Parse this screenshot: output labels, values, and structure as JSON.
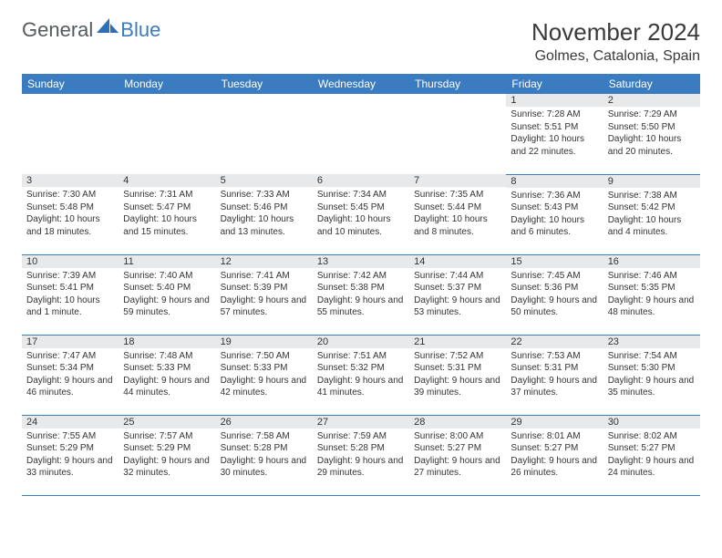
{
  "logo": {
    "text1": "General",
    "text2": "Blue",
    "shape_color": "#2f6fb3"
  },
  "title": "November 2024",
  "location": "Golmes, Catalonia, Spain",
  "colors": {
    "header_bg": "#3b7bbf",
    "header_text": "#ffffff",
    "daynum_bg": "#e8e9ea",
    "border": "#3b7bbf",
    "text": "#333333"
  },
  "columns": [
    "Sunday",
    "Monday",
    "Tuesday",
    "Wednesday",
    "Thursday",
    "Friday",
    "Saturday"
  ],
  "weeks": [
    [
      null,
      null,
      null,
      null,
      null,
      {
        "n": "1",
        "sr": "7:28 AM",
        "ss": "5:51 PM",
        "dl": "10 hours and 22 minutes."
      },
      {
        "n": "2",
        "sr": "7:29 AM",
        "ss": "5:50 PM",
        "dl": "10 hours and 20 minutes."
      }
    ],
    [
      {
        "n": "3",
        "sr": "7:30 AM",
        "ss": "5:48 PM",
        "dl": "10 hours and 18 minutes."
      },
      {
        "n": "4",
        "sr": "7:31 AM",
        "ss": "5:47 PM",
        "dl": "10 hours and 15 minutes."
      },
      {
        "n": "5",
        "sr": "7:33 AM",
        "ss": "5:46 PM",
        "dl": "10 hours and 13 minutes."
      },
      {
        "n": "6",
        "sr": "7:34 AM",
        "ss": "5:45 PM",
        "dl": "10 hours and 10 minutes."
      },
      {
        "n": "7",
        "sr": "7:35 AM",
        "ss": "5:44 PM",
        "dl": "10 hours and 8 minutes."
      },
      {
        "n": "8",
        "sr": "7:36 AM",
        "ss": "5:43 PM",
        "dl": "10 hours and 6 minutes."
      },
      {
        "n": "9",
        "sr": "7:38 AM",
        "ss": "5:42 PM",
        "dl": "10 hours and 4 minutes."
      }
    ],
    [
      {
        "n": "10",
        "sr": "7:39 AM",
        "ss": "5:41 PM",
        "dl": "10 hours and 1 minute."
      },
      {
        "n": "11",
        "sr": "7:40 AM",
        "ss": "5:40 PM",
        "dl": "9 hours and 59 minutes."
      },
      {
        "n": "12",
        "sr": "7:41 AM",
        "ss": "5:39 PM",
        "dl": "9 hours and 57 minutes."
      },
      {
        "n": "13",
        "sr": "7:42 AM",
        "ss": "5:38 PM",
        "dl": "9 hours and 55 minutes."
      },
      {
        "n": "14",
        "sr": "7:44 AM",
        "ss": "5:37 PM",
        "dl": "9 hours and 53 minutes."
      },
      {
        "n": "15",
        "sr": "7:45 AM",
        "ss": "5:36 PM",
        "dl": "9 hours and 50 minutes."
      },
      {
        "n": "16",
        "sr": "7:46 AM",
        "ss": "5:35 PM",
        "dl": "9 hours and 48 minutes."
      }
    ],
    [
      {
        "n": "17",
        "sr": "7:47 AM",
        "ss": "5:34 PM",
        "dl": "9 hours and 46 minutes."
      },
      {
        "n": "18",
        "sr": "7:48 AM",
        "ss": "5:33 PM",
        "dl": "9 hours and 44 minutes."
      },
      {
        "n": "19",
        "sr": "7:50 AM",
        "ss": "5:33 PM",
        "dl": "9 hours and 42 minutes."
      },
      {
        "n": "20",
        "sr": "7:51 AM",
        "ss": "5:32 PM",
        "dl": "9 hours and 41 minutes."
      },
      {
        "n": "21",
        "sr": "7:52 AM",
        "ss": "5:31 PM",
        "dl": "9 hours and 39 minutes."
      },
      {
        "n": "22",
        "sr": "7:53 AM",
        "ss": "5:31 PM",
        "dl": "9 hours and 37 minutes."
      },
      {
        "n": "23",
        "sr": "7:54 AM",
        "ss": "5:30 PM",
        "dl": "9 hours and 35 minutes."
      }
    ],
    [
      {
        "n": "24",
        "sr": "7:55 AM",
        "ss": "5:29 PM",
        "dl": "9 hours and 33 minutes."
      },
      {
        "n": "25",
        "sr": "7:57 AM",
        "ss": "5:29 PM",
        "dl": "9 hours and 32 minutes."
      },
      {
        "n": "26",
        "sr": "7:58 AM",
        "ss": "5:28 PM",
        "dl": "9 hours and 30 minutes."
      },
      {
        "n": "27",
        "sr": "7:59 AM",
        "ss": "5:28 PM",
        "dl": "9 hours and 29 minutes."
      },
      {
        "n": "28",
        "sr": "8:00 AM",
        "ss": "5:27 PM",
        "dl": "9 hours and 27 minutes."
      },
      {
        "n": "29",
        "sr": "8:01 AM",
        "ss": "5:27 PM",
        "dl": "9 hours and 26 minutes."
      },
      {
        "n": "30",
        "sr": "8:02 AM",
        "ss": "5:27 PM",
        "dl": "9 hours and 24 minutes."
      }
    ]
  ],
  "labels": {
    "sunrise": "Sunrise: ",
    "sunset": "Sunset: ",
    "daylight": "Daylight: "
  }
}
